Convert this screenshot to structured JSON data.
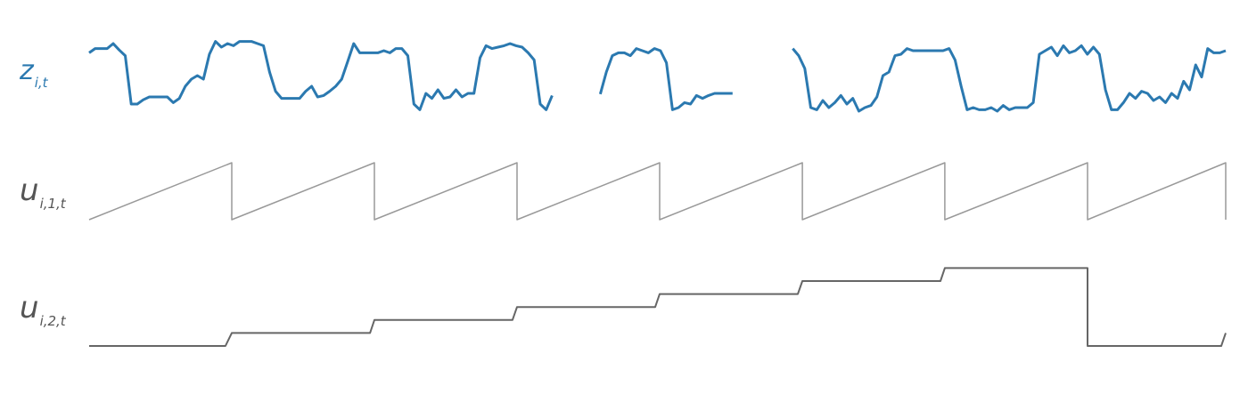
{
  "labels": {
    "z": {
      "main": "z",
      "sub": "i,t"
    },
    "u1": {
      "main": "u",
      "sub": "i,1,t"
    },
    "u2": {
      "main": "u",
      "sub": "i,2,t"
    }
  },
  "colors": {
    "z": "#2b79b0",
    "u1": "#999999",
    "u2": "#666666"
  },
  "chart_data": [
    {
      "type": "line",
      "series": [
        {
          "values": [
            0.82,
            0.88,
            0.88,
            0.88,
            0.95,
            0.86,
            0.78,
            0.1,
            0.1,
            0.16,
            0.2,
            0.2,
            0.2,
            0.2,
            0.12,
            0.18,
            0.35,
            0.45,
            0.5,
            0.45,
            0.8,
            0.98,
            0.9,
            0.95,
            0.92,
            0.98,
            0.98,
            0.98,
            0.95,
            0.92,
            0.55,
            0.28,
            0.18,
            0.18,
            0.18,
            0.18,
            0.28,
            0.35,
            0.2,
            0.22,
            0.28,
            0.35,
            0.45,
            0.7,
            0.95,
            0.82,
            0.82,
            0.82,
            0.82,
            0.85,
            0.82,
            0.88,
            0.88,
            0.78,
            0.1,
            0.02,
            0.25,
            0.18,
            0.3,
            0.18,
            0.2,
            0.3,
            0.2,
            0.25,
            0.25,
            0.75,
            0.92,
            0.88,
            0.9,
            0.92,
            0.95,
            0.92,
            0.9,
            0.82,
            0.72,
            0.1,
            0.02,
            0.22,
            null,
            0.22,
            null,
            0.2,
            null,
            0.22,
            null,
            0.24,
            0.55,
            0.78,
            0.82,
            0.82,
            0.78,
            0.88,
            0.85,
            0.82,
            0.88,
            0.85,
            0.68,
            0.02,
            0.05,
            0.12,
            0.1,
            0.22,
            0.18,
            0.22,
            0.25,
            0.25,
            0.25,
            0.25,
            null,
            0.78,
            null,
            0.84,
            null,
            0.84,
            null,
            0.84,
            null,
            0.88,
            0.78,
            0.6,
            0.05,
            0.02,
            0.15,
            0.05,
            0.12,
            0.22,
            0.1,
            0.18,
            0.0,
            0.05,
            0.08,
            0.2,
            0.5,
            0.55,
            0.78,
            0.8,
            0.88,
            0.85,
            0.85,
            0.85,
            0.85,
            0.85,
            0.85,
            0.88,
            0.72,
            0.35,
            0.02,
            0.05,
            0.02,
            0.02,
            0.05,
            0.0,
            0.08,
            0.02,
            0.05,
            0.05,
            0.05,
            0.12,
            0.8,
            0.85,
            0.9,
            0.78,
            0.92,
            0.82,
            0.85,
            0.92,
            0.8,
            0.9,
            0.8,
            0.3,
            0.02,
            0.02,
            0.12,
            0.25,
            0.18,
            0.28,
            0.25,
            0.15,
            0.2,
            0.12,
            0.25,
            0.18,
            0.42,
            0.3,
            0.65,
            0.48,
            0.88,
            0.82,
            0.82,
            0.85
          ]
        }
      ]
    },
    {
      "type": "line",
      "series": [
        {
          "x": [
            0,
            0.1255,
            0.1255,
            0.251,
            0.251,
            0.3765,
            0.3765,
            0.502,
            0.502,
            0.6275,
            0.6275,
            0.7529,
            0.7529,
            0.8784,
            0.8784,
            1.0,
            1.0
          ],
          "values": [
            0,
            1,
            0,
            1,
            0,
            1,
            0,
            1,
            0,
            1,
            0,
            1,
            0,
            1,
            0,
            1,
            0
          ]
        }
      ]
    },
    {
      "type": "line",
      "series": [
        {
          "x": [
            0,
            0.1199,
            0.1255,
            0.2471,
            0.251,
            0.3725,
            0.3765,
            0.498,
            0.502,
            0.6235,
            0.6275,
            0.749,
            0.7529,
            0.8784,
            0.8784,
            0.9961,
            1.0
          ],
          "values": [
            0,
            0,
            1,
            1,
            2,
            2,
            3,
            3,
            4,
            4,
            5,
            5,
            6,
            6,
            0,
            0,
            1
          ]
        }
      ]
    }
  ]
}
